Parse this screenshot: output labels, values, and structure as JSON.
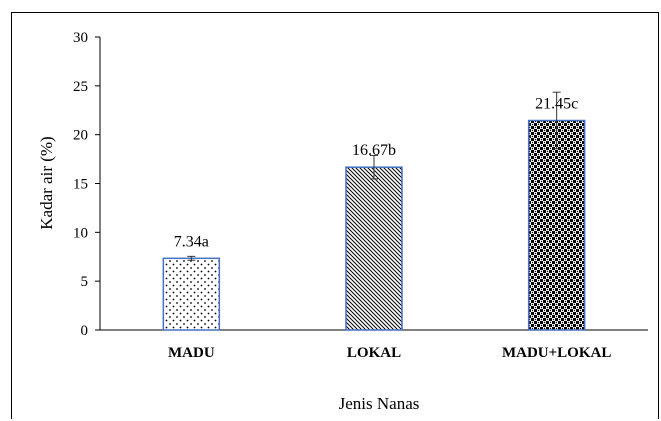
{
  "chart_data": {
    "type": "bar",
    "categories": [
      "MADU",
      "LOKAL",
      "MADU+LOKAL"
    ],
    "values": [
      7.34,
      16.67,
      21.45
    ],
    "error": [
      0.2,
      1.2,
      2.9
    ],
    "data_labels": [
      "7.34a",
      "16.67b",
      "21.45c"
    ],
    "xlabel": "Jenis Nanas",
    "ylabel": "Kadar air (%)",
    "ylim": [
      0,
      30
    ],
    "yticks": [
      0,
      5,
      10,
      15,
      20,
      25,
      30
    ],
    "grid": false,
    "legend": "none",
    "bar_outline_color": "#4472C4",
    "bar_patterns": [
      "dots",
      "diagonal-hatch",
      "checker"
    ]
  }
}
